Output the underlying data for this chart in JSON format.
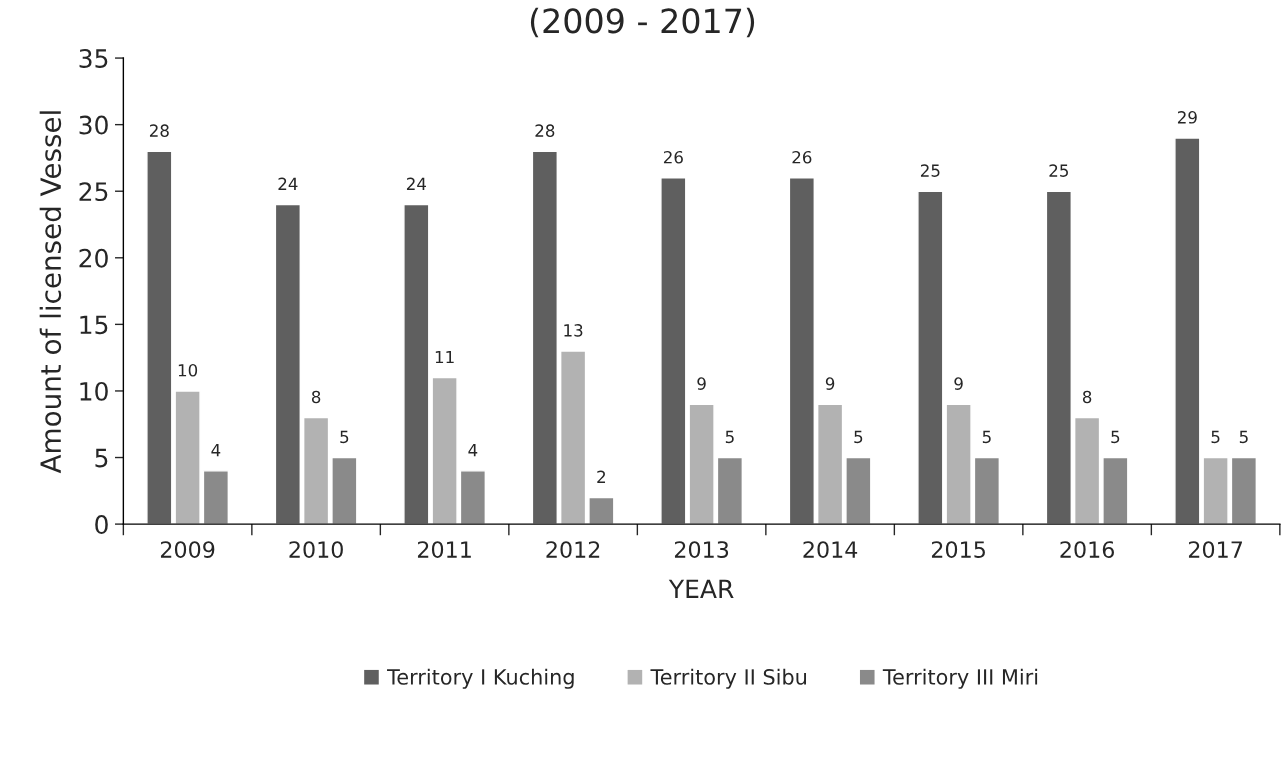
{
  "chart_data": {
    "type": "bar",
    "title": "(2009 - 2017)",
    "xlabel": "YEAR",
    "ylabel": "Amount of licensed Vessel",
    "categories": [
      "2009",
      "2010",
      "2011",
      "2012",
      "2013",
      "2014",
      "2015",
      "2016",
      "2017"
    ],
    "series": [
      {
        "name": "Territory I Kuching",
        "color": "#5f5f5f",
        "values": [
          28,
          24,
          24,
          28,
          26,
          26,
          25,
          25,
          29
        ]
      },
      {
        "name": "Territory II Sibu",
        "color": "#b2b2b2",
        "values": [
          10,
          8,
          11,
          13,
          9,
          9,
          9,
          8,
          5
        ]
      },
      {
        "name": "Territory III Miri",
        "color": "#8a8a8a",
        "values": [
          4,
          5,
          4,
          2,
          5,
          5,
          5,
          5,
          5
        ]
      }
    ],
    "ylim": [
      0,
      35
    ],
    "yticks": [
      0,
      5,
      10,
      15,
      20,
      25,
      30,
      35
    ],
    "data_labels": true,
    "grid": false,
    "legend": "bottom"
  }
}
